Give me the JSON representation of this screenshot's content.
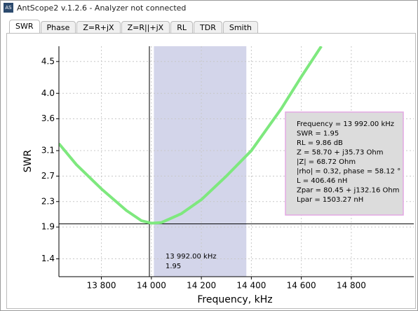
{
  "window": {
    "icon": "AS",
    "title": "AntScope2 v.1.2.6 - Analyzer not connected"
  },
  "tabs": [
    "SWR",
    "Phase",
    "Z=R+jX",
    "Z=R||+jX",
    "RL",
    "TDR",
    "Smith"
  ],
  "chart_data": {
    "type": "line",
    "ylabel": "SWR",
    "xlabel": "Frequency, kHz",
    "x": [
      13630,
      13700,
      13800,
      13900,
      13960,
      14000,
      14040,
      14120,
      14200,
      14300,
      14400,
      14520,
      14600,
      14680
    ],
    "series": [
      {
        "color": "#7ee87e",
        "values": [
          3.21,
          2.88,
          2.5,
          2.16,
          2.0,
          1.96,
          1.97,
          2.11,
          2.33,
          2.7,
          3.1,
          3.76,
          4.26,
          4.74
        ]
      }
    ],
    "xlim": [
      13630,
      15050
    ],
    "ylim": [
      1.12,
      4.74
    ],
    "xticks": [
      {
        "value": 13800,
        "label": "13 800"
      },
      {
        "value": 14000,
        "label": "14 000"
      },
      {
        "value": 14200,
        "label": "14 200"
      },
      {
        "value": 14400,
        "label": "14 400"
      },
      {
        "value": 14600,
        "label": "14 600"
      },
      {
        "value": 14800,
        "label": "14 800"
      }
    ],
    "yticks": [
      1.4,
      1.9,
      2.3,
      2.7,
      3.1,
      3.6,
      {
        "value": 4.0,
        "label": "4.0"
      },
      4.5
    ],
    "grid": true,
    "band": [
      14010,
      14380
    ],
    "band_color": "#d3d5ea",
    "cursor_x": 13992,
    "cursor_y": 1.95,
    "cursor_labels": [
      "13 992.00 kHz",
      "1.95"
    ],
    "info_lines": [
      "Frequency = 13 992.00 kHz",
      "SWR = 1.95",
      "RL = 9.86 dB",
      "Z = 58.70 + j35.73 Ohm",
      "|Z| = 68.72 Ohm",
      "|rho| = 0.32, phase = 58.12 °",
      "L = 406.46 nH",
      "Zpar = 80.45 + j132.16 Ohm",
      "Lpar = 1503.27 nH"
    ]
  }
}
